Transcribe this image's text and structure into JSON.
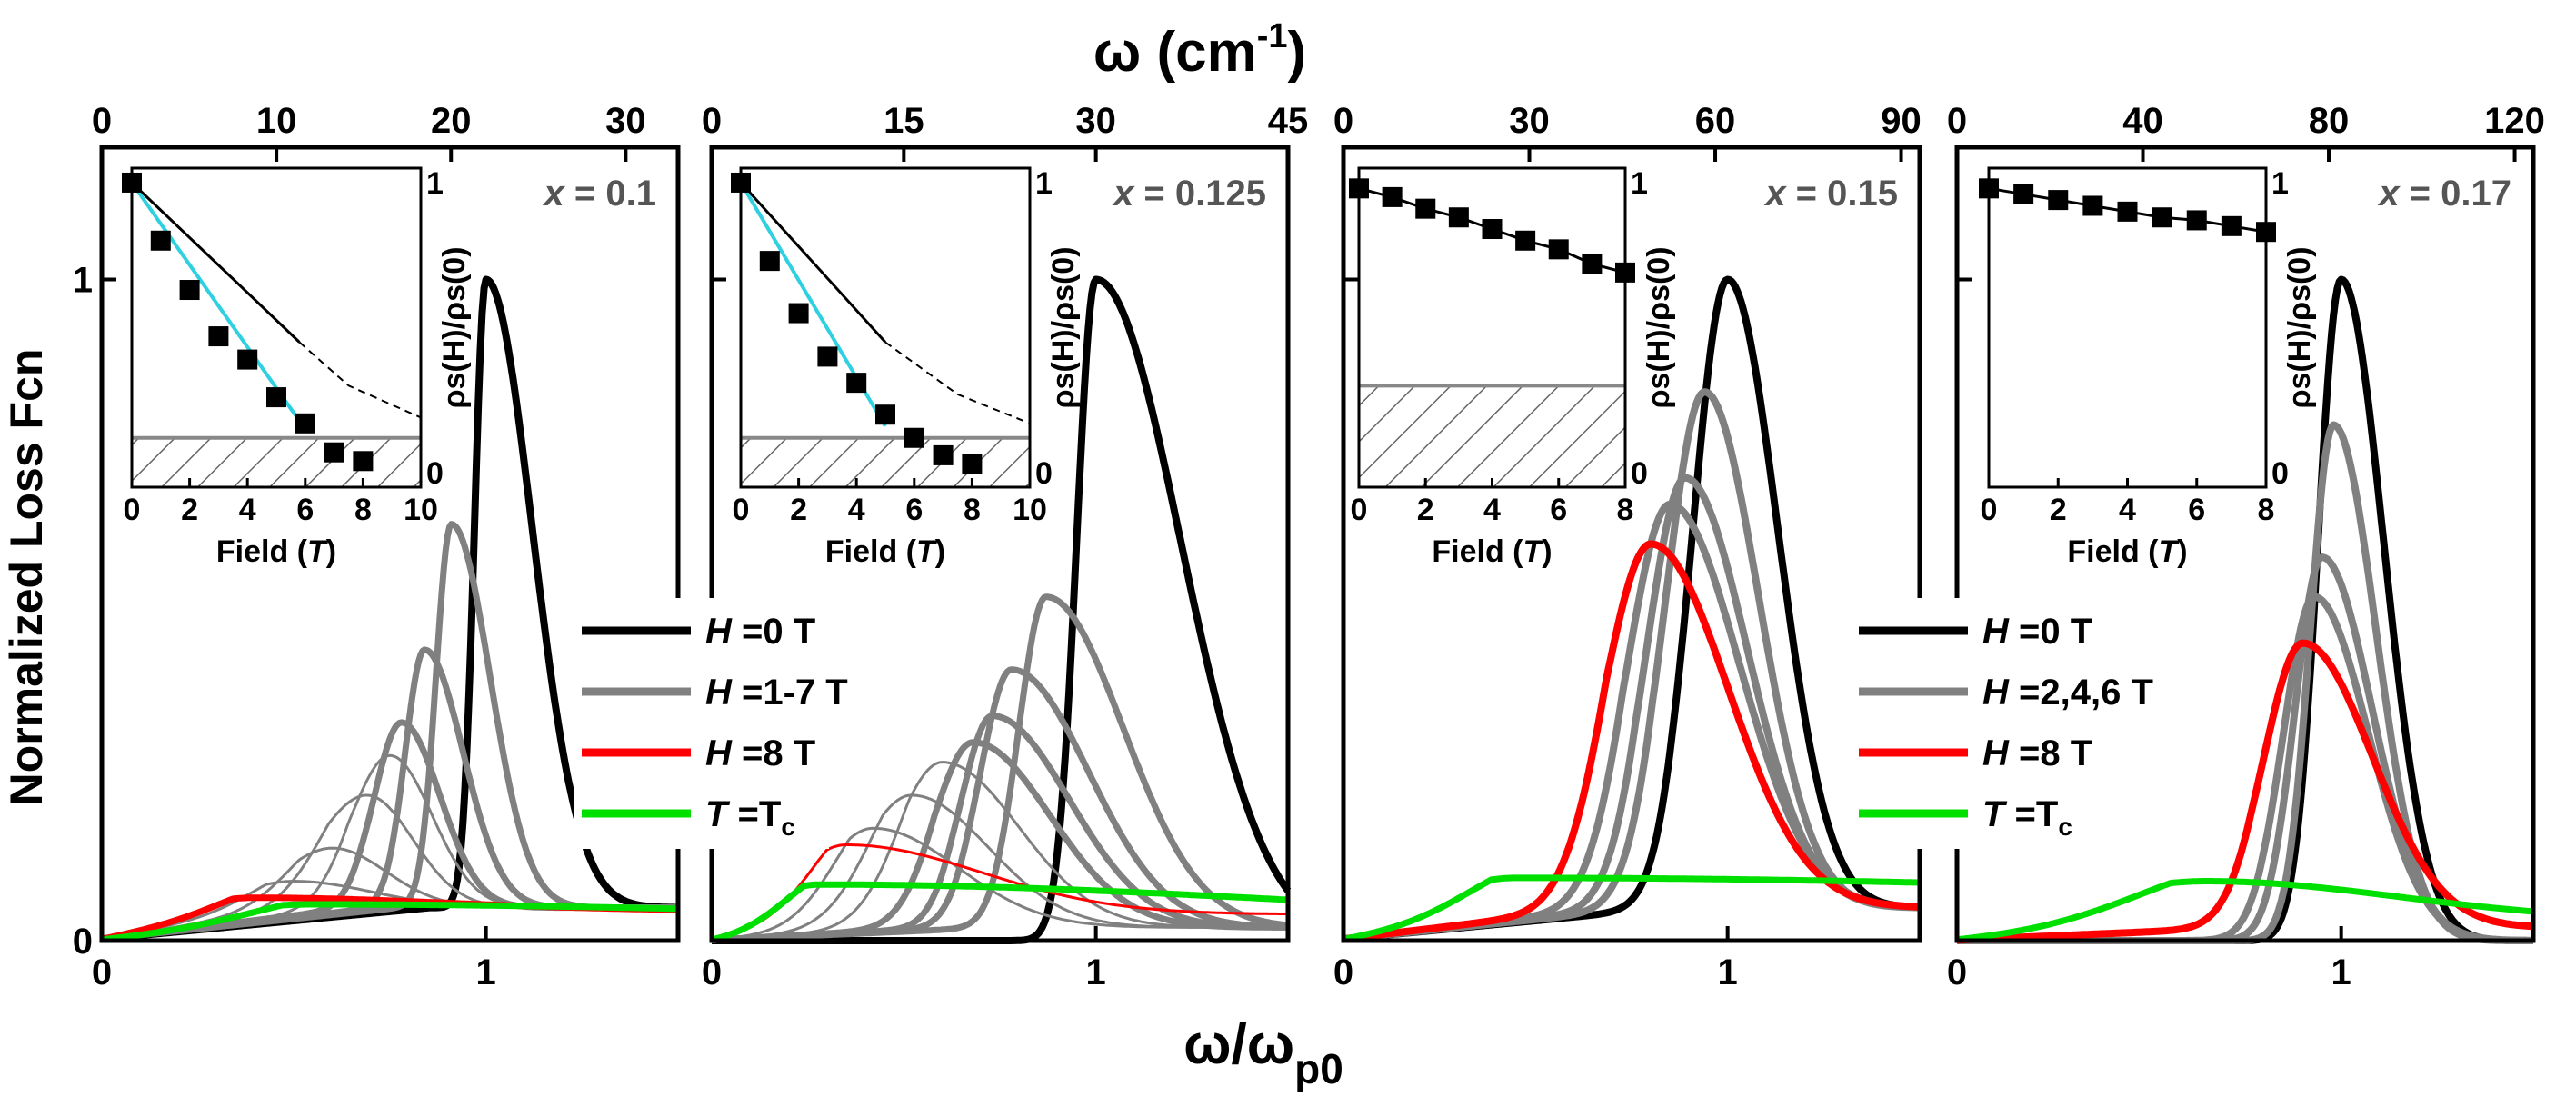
{
  "chart_data": {
    "type": "line",
    "top_axis_label": "ω (cm",
    "top_axis_label_sup": "-1",
    "top_axis_label_close": ")",
    "bottom_axis_label": "ω/ω",
    "bottom_axis_label_sub": "p0",
    "y_axis_label": "Normalized Loss Fcn",
    "xlim": [
      0,
      1.5
    ],
    "ylim": [
      0,
      1.2
    ],
    "y_ticks": [
      "0",
      "1"
    ],
    "x_ticks": [
      "0",
      "1"
    ],
    "legend_groups": [
      {
        "entries": [
          {
            "prefix": "H",
            "text": " =0 T",
            "color": "#000000"
          },
          {
            "prefix": "H",
            "text": " =1-7 T",
            "color": "#808080"
          },
          {
            "prefix": "H",
            "text": " =8 T",
            "color": "#ff0000"
          },
          {
            "prefix": "T",
            "text": " =T",
            "suffix_sub": "c",
            "color": "#00e000"
          }
        ]
      },
      {
        "entries": [
          {
            "prefix": "H",
            "text": " =0 T",
            "color": "#000000"
          },
          {
            "prefix": "H",
            "text": " =2,4,6 T",
            "color": "#808080"
          },
          {
            "prefix": "H",
            "text": " =8 T",
            "color": "#ff0000"
          },
          {
            "prefix": "T",
            "text": " =T",
            "suffix_sub": "c",
            "color": "#00e000"
          }
        ]
      }
    ],
    "panels": [
      {
        "label_prefix": "x",
        "label_value": " = 0.1",
        "top_ticks": [
          "0",
          "10",
          "20",
          "30"
        ],
        "top_tick_values": [
          0,
          10,
          20,
          30
        ],
        "top_max": 33,
        "series": [
          {
            "name": "H=0 T",
            "color": "#000000",
            "width": 8,
            "peak": 1.0,
            "height": 1.0,
            "left": 0.03,
            "right": 0.12,
            "base": 0.05,
            "lo": 0.75
          },
          {
            "name": "H=1 T",
            "color": "#808080",
            "width": 7,
            "peak": 0.91,
            "height": 0.63,
            "left": 0.04,
            "right": 0.1,
            "base": 0.05,
            "lo": 0.7
          },
          {
            "name": "H=2 T",
            "color": "#808080",
            "width": 7,
            "peak": 0.84,
            "height": 0.44,
            "left": 0.05,
            "right": 0.1,
            "base": 0.05,
            "lo": 0.72
          },
          {
            "name": "H=3 T",
            "color": "#808080",
            "width": 7,
            "peak": 0.78,
            "height": 0.33,
            "left": 0.07,
            "right": 0.1,
            "base": 0.05,
            "lo": 0.7
          },
          {
            "name": "H=4 T",
            "color": "#808080",
            "width": 3,
            "peak": 0.75,
            "height": 0.28,
            "left": 0.1,
            "right": 0.11,
            "base": 0.05,
            "lo": 0.2
          },
          {
            "name": "H=5 T",
            "color": "#808080",
            "width": 3,
            "peak": 0.69,
            "height": 0.22,
            "left": 0.13,
            "right": 0.12,
            "base": 0.05,
            "lo": 0.2
          },
          {
            "name": "H=6 T",
            "color": "#808080",
            "width": 3,
            "peak": 0.6,
            "height": 0.14,
            "left": 0.13,
            "right": 0.14,
            "base": 0.05,
            "lo": 0.15
          },
          {
            "name": "H=7 T",
            "color": "#808080",
            "width": 3,
            "peak": 0.5,
            "height": 0.09,
            "left": 0.14,
            "right": 0.2,
            "base": 0.05,
            "lo": 0.1
          },
          {
            "name": "H=8 T",
            "color": "#ff0000",
            "width": 7,
            "peak": 0.4,
            "height": 0.065,
            "left": 0.15,
            "right": 0.5,
            "base": 0.045,
            "lo": 0.0
          },
          {
            "name": "T=Tc",
            "color": "#00e000",
            "width": 7,
            "peak": 0.55,
            "height": 0.055,
            "left": 0.25,
            "right": 1.2,
            "base": 0.03,
            "lo": 0.0
          }
        ],
        "inset": {
          "xlim": [
            0,
            10
          ],
          "x_ticks": [
            "0",
            "2",
            "4",
            "6",
            "8",
            "10"
          ],
          "x_tick_values": [
            0,
            2,
            4,
            6,
            8,
            10
          ],
          "xlabel_prefix": "Field (",
          "xlabel_italic": "T",
          "xlabel_suffix": ")",
          "ylabel": "ρs(H)/ρs(0)",
          "y_ticks": [
            "0",
            "1"
          ],
          "hatch_top": 0.12,
          "points": [
            [
              0,
              1.0
            ],
            [
              1,
              0.8
            ],
            [
              2,
              0.63
            ],
            [
              3,
              0.47
            ],
            [
              4,
              0.39
            ],
            [
              5,
              0.26
            ],
            [
              6,
              0.17
            ],
            [
              7,
              0.07
            ],
            [
              8,
              0.04
            ]
          ],
          "cyan_line": [
            [
              0,
              1.0
            ],
            [
              6,
              0.15
            ]
          ],
          "black_line": [
            [
              0,
              1.0
            ],
            [
              5.8,
              0.45
            ]
          ],
          "dashed_line": [
            [
              5.8,
              0.45
            ],
            [
              7.5,
              0.3
            ],
            [
              10,
              0.19
            ]
          ]
        }
      },
      {
        "label_prefix": "x",
        "label_value": " = 0.125",
        "top_ticks": [
          "0",
          "15",
          "30",
          "45"
        ],
        "top_tick_values": [
          0,
          15,
          30,
          45
        ],
        "top_max": 45,
        "series": [
          {
            "name": "H=0 T",
            "color": "#000000",
            "width": 8,
            "peak": 1.0,
            "height": 1.0,
            "left": 0.05,
            "right": 0.22,
            "base": 0.0,
            "lo": 0.6
          },
          {
            "name": "H=1 T",
            "color": "#808080",
            "width": 7,
            "peak": 0.87,
            "height": 0.52,
            "left": 0.07,
            "right": 0.2,
            "base": 0.02,
            "lo": 0.6
          },
          {
            "name": "H=2 T",
            "color": "#808080",
            "width": 7,
            "peak": 0.78,
            "height": 0.41,
            "left": 0.08,
            "right": 0.2,
            "base": 0.02,
            "lo": 0.62
          },
          {
            "name": "H=3 T",
            "color": "#808080",
            "width": 7,
            "peak": 0.73,
            "height": 0.34,
            "left": 0.08,
            "right": 0.2,
            "base": 0.02,
            "lo": 0.6
          },
          {
            "name": "H=4 T",
            "color": "#808080",
            "width": 7,
            "peak": 0.68,
            "height": 0.3,
            "left": 0.1,
            "right": 0.2,
            "base": 0.02,
            "lo": 0.58
          },
          {
            "name": "H=5 T",
            "color": "#808080",
            "width": 3,
            "peak": 0.6,
            "height": 0.27,
            "left": 0.12,
            "right": 0.2,
            "base": 0.02,
            "lo": 0.1
          },
          {
            "name": "H=6 T",
            "color": "#808080",
            "width": 3,
            "peak": 0.52,
            "height": 0.22,
            "left": 0.13,
            "right": 0.2,
            "base": 0.02,
            "lo": 0.1
          },
          {
            "name": "H=7 T",
            "color": "#808080",
            "width": 3,
            "peak": 0.42,
            "height": 0.17,
            "left": 0.13,
            "right": 0.22,
            "base": 0.02,
            "lo": 0.1
          },
          {
            "name": "H=8 T",
            "color": "#ff0000",
            "width": 3,
            "peak": 0.35,
            "height": 0.145,
            "left": 0.13,
            "right": 0.35,
            "base": 0.04,
            "lo": 0.0
          },
          {
            "name": "T=Tc",
            "color": "#00e000",
            "width": 7,
            "peak": 0.28,
            "height": 0.085,
            "left": 0.15,
            "right": 1.3,
            "base": 0.02,
            "lo": 0.0
          }
        ],
        "inset": {
          "xlim": [
            0,
            10
          ],
          "x_ticks": [
            "0",
            "2",
            "4",
            "6",
            "8",
            "10"
          ],
          "x_tick_values": [
            0,
            2,
            4,
            6,
            8,
            10
          ],
          "xlabel_prefix": "Field (",
          "xlabel_italic": "T",
          "xlabel_suffix": ")",
          "ylabel": "ρs(H)/ρs(0)",
          "y_ticks": [
            "0",
            "1"
          ],
          "hatch_top": 0.12,
          "points": [
            [
              0,
              1.0
            ],
            [
              1,
              0.73
            ],
            [
              2,
              0.55
            ],
            [
              3,
              0.4
            ],
            [
              4,
              0.31
            ],
            [
              5,
              0.2
            ],
            [
              6,
              0.12
            ],
            [
              7,
              0.06
            ],
            [
              8,
              0.03
            ]
          ],
          "cyan_line": [
            [
              0,
              1.0
            ],
            [
              5,
              0.16
            ]
          ],
          "black_line": [
            [
              0,
              1.0
            ],
            [
              5,
              0.45
            ]
          ],
          "dashed_line": [
            [
              5,
              0.45
            ],
            [
              7.5,
              0.27
            ],
            [
              10,
              0.17
            ]
          ]
        }
      },
      {
        "label_prefix": "x",
        "label_value": " = 0.15",
        "top_ticks": [
          "0",
          "30",
          "60",
          "90"
        ],
        "top_tick_values": [
          0,
          30,
          60,
          90
        ],
        "top_max": 93,
        "series": [
          {
            "name": "H=0 T",
            "color": "#000000",
            "width": 8,
            "peak": 1.0,
            "height": 1.0,
            "left": 0.09,
            "right": 0.13,
            "base": 0.05,
            "lo": 0.6
          },
          {
            "name": "H=2 T",
            "color": "#808080",
            "width": 8,
            "peak": 0.94,
            "height": 0.83,
            "left": 0.1,
            "right": 0.14,
            "base": 0.05,
            "lo": 0.55
          },
          {
            "name": "H=4 T",
            "color": "#808080",
            "width": 8,
            "peak": 0.89,
            "height": 0.7,
            "left": 0.1,
            "right": 0.16,
            "base": 0.05,
            "lo": 0.5
          },
          {
            "name": "H=6 T",
            "color": "#808080",
            "width": 8,
            "peak": 0.85,
            "height": 0.66,
            "left": 0.11,
            "right": 0.18,
            "base": 0.05,
            "lo": 0.45
          },
          {
            "name": "H=8 T",
            "color": "#ff0000",
            "width": 8,
            "peak": 0.8,
            "height": 0.6,
            "left": 0.12,
            "right": 0.2,
            "base": 0.05,
            "lo": 0.42
          },
          {
            "name": "T=Tc",
            "color": "#00e000",
            "width": 7,
            "peak": 0.45,
            "height": 0.095,
            "left": 0.2,
            "right": 2.0,
            "base": 0.04,
            "lo": 0.0
          }
        ],
        "inset": {
          "xlim": [
            0,
            8
          ],
          "x_ticks": [
            "0",
            "2",
            "4",
            "6",
            "8"
          ],
          "x_tick_values": [
            0,
            2,
            4,
            6,
            8
          ],
          "xlabel_prefix": "Field (",
          "xlabel_italic": "T",
          "xlabel_suffix": ")",
          "ylabel": "ρs(H)/ρs(0)",
          "y_ticks": [
            "0",
            "1"
          ],
          "hatch_top": 0.3,
          "points": [
            [
              0,
              0.98
            ],
            [
              1,
              0.95
            ],
            [
              2,
              0.91
            ],
            [
              3,
              0.88
            ],
            [
              4,
              0.84
            ],
            [
              5,
              0.8
            ],
            [
              6,
              0.77
            ],
            [
              7,
              0.72
            ],
            [
              8,
              0.69
            ]
          ],
          "cyan_line": [],
          "black_line": [
            [
              0,
              0.98
            ],
            [
              1,
              0.95
            ],
            [
              2,
              0.91
            ],
            [
              3,
              0.88
            ],
            [
              4,
              0.84
            ],
            [
              5,
              0.8
            ],
            [
              6,
              0.77
            ],
            [
              7,
              0.72
            ],
            [
              8,
              0.69
            ]
          ],
          "dashed_line": []
        }
      },
      {
        "label_prefix": "x",
        "label_value": " = 0.17",
        "top_ticks": [
          "0",
          "40",
          "80",
          "120"
        ],
        "top_tick_values": [
          0,
          40,
          80,
          120
        ],
        "top_max": 124,
        "series": [
          {
            "name": "H=0 T",
            "color": "#000000",
            "width": 8,
            "peak": 1.0,
            "height": 1.0,
            "left": 0.06,
            "right": 0.11,
            "base": 0.0,
            "lo": 0.6
          },
          {
            "name": "H=2 T",
            "color": "#808080",
            "width": 8,
            "peak": 0.98,
            "height": 0.78,
            "left": 0.06,
            "right": 0.11,
            "base": 0.0,
            "lo": 0.6
          },
          {
            "name": "H=4 T",
            "color": "#808080",
            "width": 8,
            "peak": 0.95,
            "height": 0.58,
            "left": 0.07,
            "right": 0.13,
            "base": 0.0,
            "lo": 0.58
          },
          {
            "name": "H=6 T",
            "color": "#808080",
            "width": 8,
            "peak": 0.93,
            "height": 0.52,
            "left": 0.08,
            "right": 0.14,
            "base": 0.0,
            "lo": 0.55
          },
          {
            "name": "H=8 T",
            "color": "#ff0000",
            "width": 8,
            "peak": 0.9,
            "height": 0.45,
            "left": 0.1,
            "right": 0.18,
            "base": 0.02,
            "lo": 0.3
          },
          {
            "name": "T=Tc",
            "color": "#00e000",
            "width": 7,
            "peak": 0.65,
            "height": 0.09,
            "left": 0.3,
            "right": 0.5,
            "base": 0.03,
            "lo": 0.0
          }
        ],
        "inset": {
          "xlim": [
            0,
            8
          ],
          "x_ticks": [
            "0",
            "2",
            "4",
            "6",
            "8"
          ],
          "x_tick_values": [
            0,
            2,
            4,
            6,
            8
          ],
          "xlabel_prefix": "Field (",
          "xlabel_italic": "T",
          "xlabel_suffix": ")",
          "ylabel": "ρs(H)/ρs(0)",
          "y_ticks": [
            "0",
            "1"
          ],
          "hatch_top": 0.0,
          "points": [
            [
              0,
              0.98
            ],
            [
              1,
              0.96
            ],
            [
              2,
              0.94
            ],
            [
              3,
              0.92
            ],
            [
              4,
              0.9
            ],
            [
              5,
              0.88
            ],
            [
              6,
              0.87
            ],
            [
              7,
              0.85
            ],
            [
              8,
              0.83
            ]
          ],
          "cyan_line": [],
          "black_line": [
            [
              0,
              0.98
            ],
            [
              1,
              0.96
            ],
            [
              2,
              0.94
            ],
            [
              3,
              0.92
            ],
            [
              4,
              0.9
            ],
            [
              5,
              0.88
            ],
            [
              6,
              0.87
            ],
            [
              7,
              0.85
            ],
            [
              8,
              0.83
            ]
          ],
          "dashed_line": []
        }
      }
    ]
  }
}
